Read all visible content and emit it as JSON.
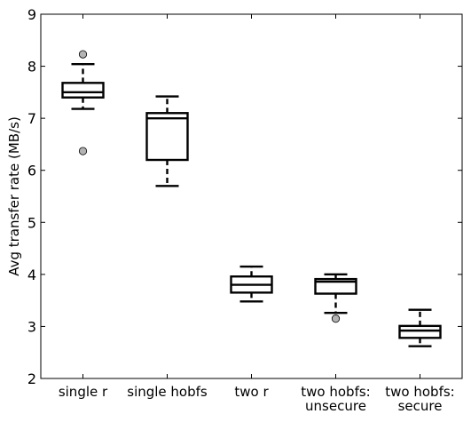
{
  "chart_data": {
    "type": "box",
    "ylabel": "Avg transfer rate (MB/s)",
    "xlabel": "",
    "title": "",
    "ylim": [
      2,
      9
    ],
    "yticks": [
      2,
      3,
      4,
      5,
      6,
      7,
      8,
      9
    ],
    "grid": false,
    "categories": [
      [
        "single r"
      ],
      [
        "single hobfs"
      ],
      [
        "two r"
      ],
      [
        "two hobfs:",
        "unsecure"
      ],
      [
        "two hobfs:",
        "secure"
      ]
    ],
    "boxes": [
      {
        "whisker_low": 7.18,
        "q1": 7.4,
        "median": 7.5,
        "q3": 7.68,
        "whisker_high": 8.04,
        "outliers": [
          8.23,
          6.37
        ]
      },
      {
        "whisker_low": 5.7,
        "q1": 6.2,
        "median": 7.0,
        "q3": 7.1,
        "whisker_high": 7.42,
        "outliers": []
      },
      {
        "whisker_low": 3.48,
        "q1": 3.65,
        "median": 3.8,
        "q3": 3.96,
        "whisker_high": 4.15,
        "outliers": []
      },
      {
        "whisker_low": 3.26,
        "q1": 3.63,
        "median": 3.86,
        "q3": 3.91,
        "whisker_high": 4.0,
        "outliers": [
          3.15
        ]
      },
      {
        "whisker_low": 2.62,
        "q1": 2.78,
        "median": 2.92,
        "q3": 3.01,
        "whisker_high": 3.32,
        "outliers": []
      }
    ],
    "outlier_color": "#b3b3b3",
    "box_color": "#000000"
  }
}
